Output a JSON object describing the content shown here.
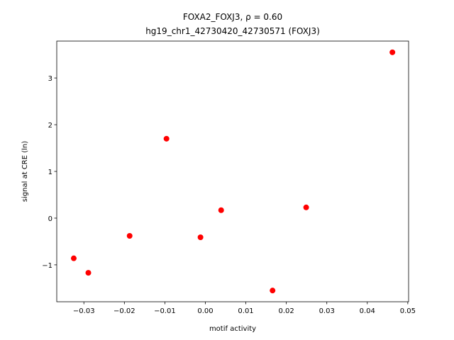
{
  "chart_data": {
    "type": "scatter",
    "title": "FOXA2_FOXJ3, ρ = 0.60",
    "subtitle": "hg19_chr1_42730420_42730571 (FOXJ3)",
    "x_label": "motif activity",
    "y_label": "signal at CRE (ln)",
    "color": "#ff0000",
    "x": [
      -0.0325,
      -0.0289,
      -0.0187,
      -0.0096,
      -0.0012,
      0.0039,
      0.0166,
      0.0249,
      0.0462
    ],
    "y": [
      -0.86,
      -1.17,
      -0.38,
      1.7,
      -0.41,
      0.17,
      -1.55,
      0.23,
      3.55
    ],
    "xlim": [
      -0.0367,
      0.0502
    ],
    "ylim": [
      -1.79,
      3.79
    ],
    "xticks": [
      {
        "value": -0.03,
        "label": "−0.03"
      },
      {
        "value": -0.02,
        "label": "−0.02"
      },
      {
        "value": -0.01,
        "label": "−0.01"
      },
      {
        "value": 0,
        "label": "0.00"
      },
      0.01,
      0.02,
      0.03,
      0.04,
      0.05
    ],
    "yticks": [
      {
        "value": -1,
        "label": "−1"
      },
      0,
      1,
      2,
      3
    ]
  }
}
